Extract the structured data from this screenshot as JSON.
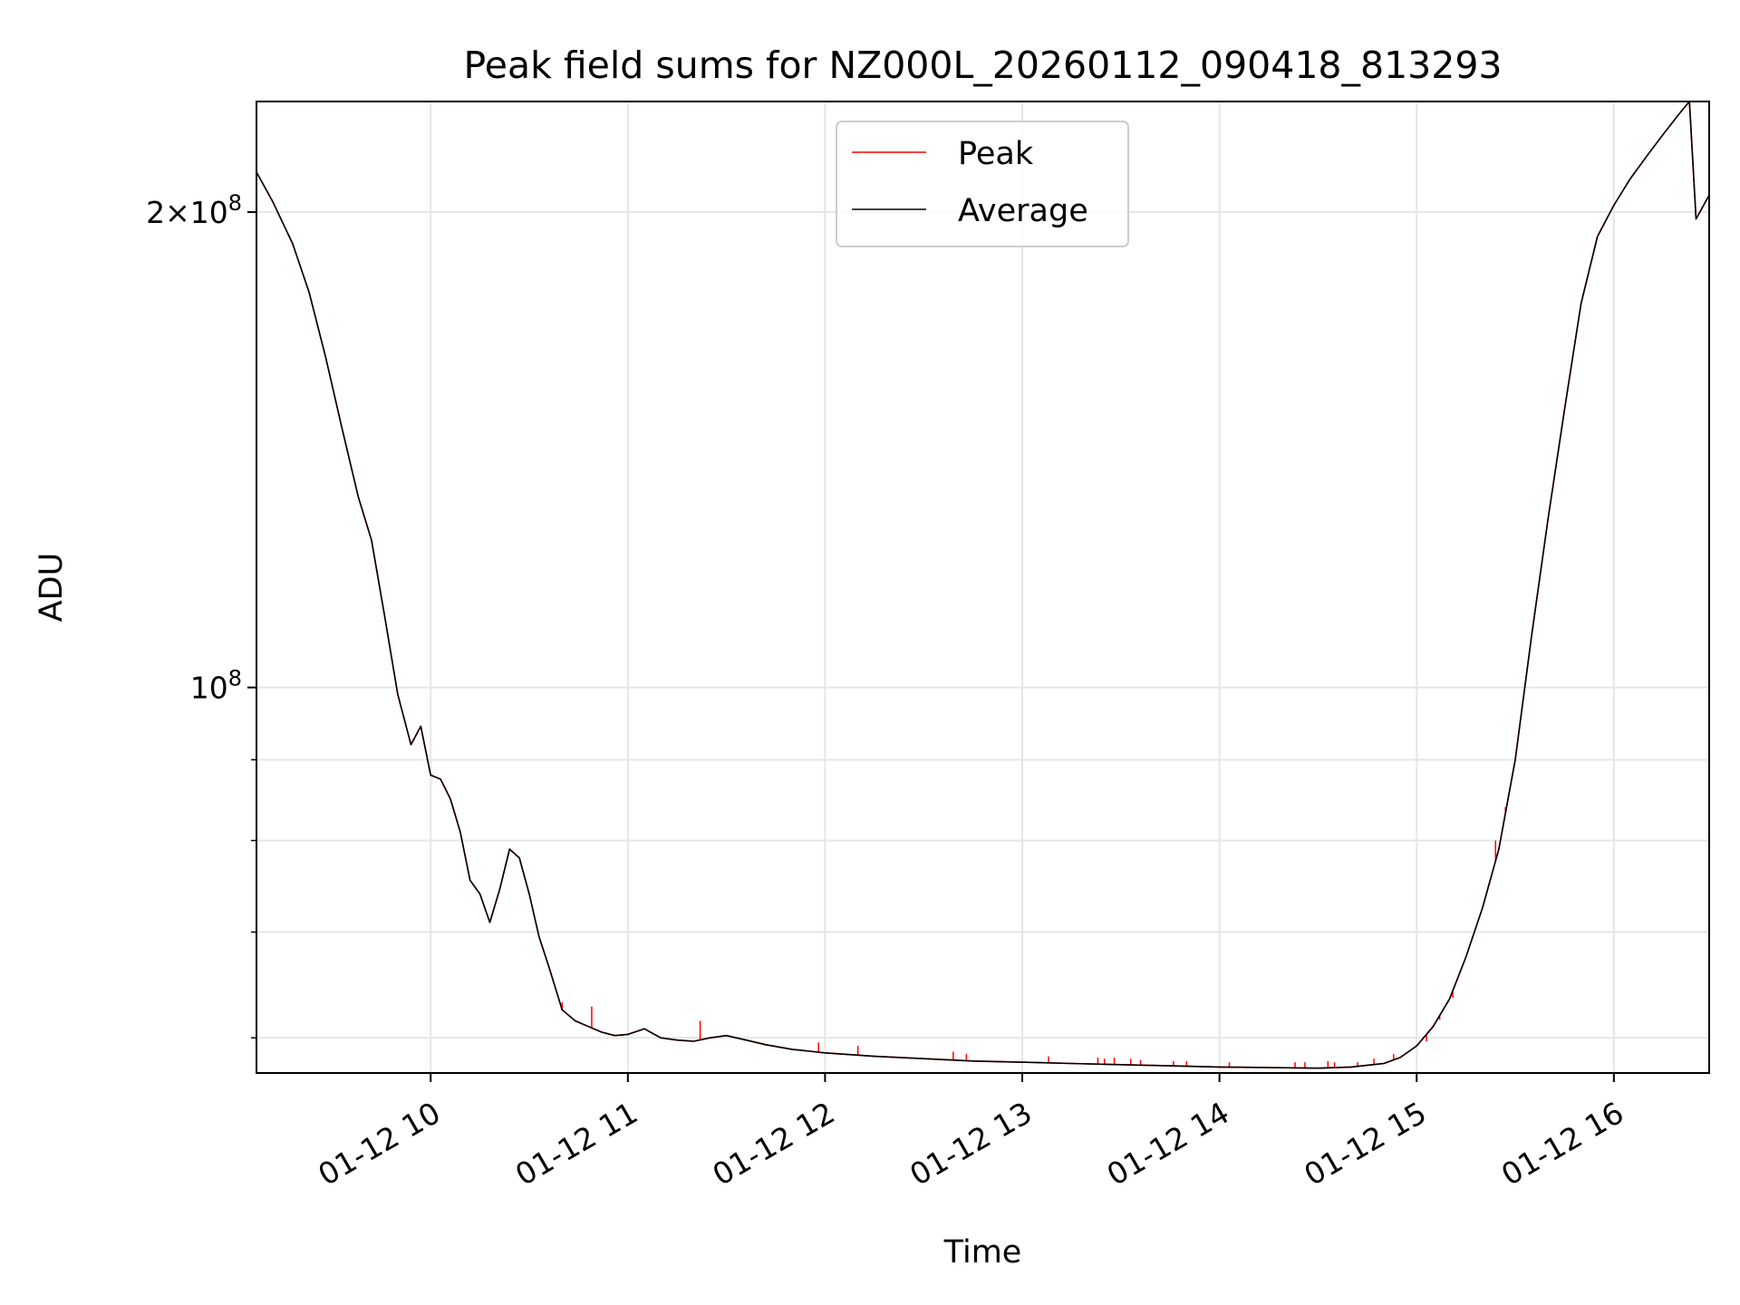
{
  "chart_data": {
    "type": "line",
    "title": "Peak field sums for NZ000L_20260112_090418_813293",
    "xlabel": "Time",
    "ylabel": "ADU",
    "x_scale": "time",
    "y_scale": "log",
    "xlim": [
      "2026-01-12 09:07",
      "2026-01-12 16:29"
    ],
    "ylim": [
      57000000,
      235000000
    ],
    "grid": true,
    "legend_position": "top-center",
    "x_ticks": [
      {
        "label": "01-12 10",
        "t": "2026-01-12 10:00"
      },
      {
        "label": "01-12 11",
        "t": "2026-01-12 11:00"
      },
      {
        "label": "01-12 12",
        "t": "2026-01-12 12:00"
      },
      {
        "label": "01-12 13",
        "t": "2026-01-12 13:00"
      },
      {
        "label": "01-12 14",
        "t": "2026-01-12 14:00"
      },
      {
        "label": "01-12 15",
        "t": "2026-01-12 15:00"
      },
      {
        "label": "01-12 16",
        "t": "2026-01-12 16:00"
      }
    ],
    "y_major_ticks": [
      {
        "value": 100000000,
        "base": "10",
        "exp": "8"
      },
      {
        "value": 200000000,
        "base": "2×10",
        "exp": "8"
      }
    ],
    "y_minor_ticks": [
      60000000,
      70000000,
      80000000,
      90000000
    ],
    "series": [
      {
        "name": "Peak",
        "color": "#ff0000",
        "points": [
          [
            "09:07",
            212000000
          ],
          [
            "09:12",
            203000000
          ],
          [
            "09:18",
            191000000
          ],
          [
            "09:23",
            178000000
          ],
          [
            "09:28",
            162000000
          ],
          [
            "09:33",
            146000000
          ],
          [
            "09:38",
            132000000
          ],
          [
            "09:42",
            124000000
          ],
          [
            "09:46",
            111000000
          ],
          [
            "09:50",
            99000000
          ],
          [
            "09:54",
            92000000
          ],
          [
            "09:57",
            94500000
          ],
          [
            "10:00",
            88000000
          ],
          [
            "10:03",
            87500000
          ],
          [
            "10:06",
            85000000
          ],
          [
            "10:09",
            81000000
          ],
          [
            "10:12",
            75500000
          ],
          [
            "10:15",
            74000000
          ],
          [
            "10:18",
            71000000
          ],
          [
            "10:21",
            74500000
          ],
          [
            "10:24",
            79000000
          ],
          [
            "10:27",
            78000000
          ],
          [
            "10:30",
            74000000
          ],
          [
            "10:33",
            69500000
          ],
          [
            "10:36",
            66500000
          ],
          [
            "10:40",
            62500000
          ],
          [
            "10:44",
            61500000
          ],
          [
            "10:48",
            61000000
          ],
          [
            "10:52",
            60500000
          ],
          [
            "10:56",
            60200000
          ],
          [
            "11:00",
            60300000
          ],
          [
            "11:05",
            60800000
          ],
          [
            "11:10",
            60000000
          ],
          [
            "11:15",
            59800000
          ],
          [
            "11:20",
            59700000
          ],
          [
            "11:25",
            60000000
          ],
          [
            "11:30",
            60200000
          ],
          [
            "11:36",
            59800000
          ],
          [
            "11:42",
            59400000
          ],
          [
            "11:50",
            59000000
          ],
          [
            "12:00",
            58700000
          ],
          [
            "12:15",
            58400000
          ],
          [
            "12:30",
            58200000
          ],
          [
            "12:45",
            58000000
          ],
          [
            "13:00",
            57900000
          ],
          [
            "13:15",
            57800000
          ],
          [
            "13:30",
            57700000
          ],
          [
            "13:45",
            57600000
          ],
          [
            "14:00",
            57500000
          ],
          [
            "14:15",
            57450000
          ],
          [
            "14:30",
            57400000
          ],
          [
            "14:40",
            57500000
          ],
          [
            "14:50",
            57800000
          ],
          [
            "14:55",
            58300000
          ],
          [
            "15:00",
            59300000
          ],
          [
            "15:05",
            61000000
          ],
          [
            "15:10",
            63500000
          ],
          [
            "15:15",
            67500000
          ],
          [
            "15:20",
            72500000
          ],
          [
            "15:25",
            79000000
          ],
          [
            "15:30",
            90000000
          ],
          [
            "15:35",
            108000000
          ],
          [
            "15:40",
            128000000
          ],
          [
            "15:45",
            150000000
          ],
          [
            "15:50",
            175000000
          ],
          [
            "15:55",
            193000000
          ],
          [
            "16:00",
            202000000
          ],
          [
            "16:05",
            210000000
          ],
          [
            "16:10",
            217000000
          ],
          [
            "16:15",
            224000000
          ],
          [
            "16:20",
            231000000
          ],
          [
            "16:23",
            235000000
          ],
          [
            "16:25",
            198000000
          ],
          [
            "16:29",
            205000000
          ]
        ]
      },
      {
        "name": "Average",
        "color": "#000000",
        "points": [
          [
            "09:07",
            212000000
          ],
          [
            "09:12",
            203000000
          ],
          [
            "09:18",
            191000000
          ],
          [
            "09:23",
            178000000
          ],
          [
            "09:28",
            162000000
          ],
          [
            "09:33",
            146000000
          ],
          [
            "09:38",
            132000000
          ],
          [
            "09:42",
            124000000
          ],
          [
            "09:46",
            111000000
          ],
          [
            "09:50",
            99000000
          ],
          [
            "09:54",
            92000000
          ],
          [
            "09:57",
            94500000
          ],
          [
            "10:00",
            88000000
          ],
          [
            "10:03",
            87500000
          ],
          [
            "10:06",
            85000000
          ],
          [
            "10:09",
            81000000
          ],
          [
            "10:12",
            75500000
          ],
          [
            "10:15",
            74000000
          ],
          [
            "10:18",
            71000000
          ],
          [
            "10:21",
            74500000
          ],
          [
            "10:24",
            79000000
          ],
          [
            "10:27",
            78000000
          ],
          [
            "10:30",
            74000000
          ],
          [
            "10:33",
            69500000
          ],
          [
            "10:36",
            66500000
          ],
          [
            "10:40",
            62500000
          ],
          [
            "10:44",
            61500000
          ],
          [
            "10:48",
            61000000
          ],
          [
            "10:52",
            60500000
          ],
          [
            "10:56",
            60200000
          ],
          [
            "11:00",
            60300000
          ],
          [
            "11:05",
            60800000
          ],
          [
            "11:10",
            60000000
          ],
          [
            "11:15",
            59800000
          ],
          [
            "11:20",
            59700000
          ],
          [
            "11:25",
            60000000
          ],
          [
            "11:30",
            60200000
          ],
          [
            "11:36",
            59800000
          ],
          [
            "11:42",
            59400000
          ],
          [
            "11:50",
            59000000
          ],
          [
            "12:00",
            58700000
          ],
          [
            "12:15",
            58400000
          ],
          [
            "12:30",
            58200000
          ],
          [
            "12:45",
            58000000
          ],
          [
            "13:00",
            57900000
          ],
          [
            "13:15",
            57800000
          ],
          [
            "13:30",
            57700000
          ],
          [
            "13:45",
            57600000
          ],
          [
            "14:00",
            57500000
          ],
          [
            "14:15",
            57450000
          ],
          [
            "14:30",
            57400000
          ],
          [
            "14:40",
            57500000
          ],
          [
            "14:50",
            57800000
          ],
          [
            "14:55",
            58300000
          ],
          [
            "15:00",
            59300000
          ],
          [
            "15:05",
            61000000
          ],
          [
            "15:10",
            63500000
          ],
          [
            "15:15",
            67500000
          ],
          [
            "15:20",
            72500000
          ],
          [
            "15:25",
            79000000
          ],
          [
            "15:30",
            90000000
          ],
          [
            "15:35",
            108000000
          ],
          [
            "15:40",
            128000000
          ],
          [
            "15:45",
            150000000
          ],
          [
            "15:50",
            175000000
          ],
          [
            "15:55",
            193000000
          ],
          [
            "16:00",
            202000000
          ],
          [
            "16:05",
            210000000
          ],
          [
            "16:10",
            217000000
          ],
          [
            "16:15",
            224000000
          ],
          [
            "16:20",
            231000000
          ],
          [
            "16:23",
            235000000
          ],
          [
            "16:25",
            198000000
          ],
          [
            "16:29",
            205000000
          ]
        ]
      }
    ],
    "peak_spikes": [
      [
        "10:40",
        63200000
      ],
      [
        "10:49",
        62800000
      ],
      [
        "11:22",
        61500000
      ],
      [
        "11:58",
        59600000
      ],
      [
        "12:10",
        59300000
      ],
      [
        "12:39",
        58800000
      ],
      [
        "12:43",
        58600000
      ],
      [
        "13:08",
        58400000
      ],
      [
        "13:23",
        58300000
      ],
      [
        "13:25",
        58200000
      ],
      [
        "13:28",
        58300000
      ],
      [
        "13:33",
        58200000
      ],
      [
        "13:36",
        58100000
      ],
      [
        "13:46",
        58000000
      ],
      [
        "13:50",
        58000000
      ],
      [
        "14:03",
        57900000
      ],
      [
        "14:23",
        57900000
      ],
      [
        "14:26",
        57900000
      ],
      [
        "14:33",
        58000000
      ],
      [
        "14:35",
        57900000
      ],
      [
        "14:42",
        57900000
      ],
      [
        "14:47",
        58200000
      ],
      [
        "14:53",
        58600000
      ],
      [
        "15:03",
        59700000
      ],
      [
        "15:07",
        61600000
      ],
      [
        "15:11",
        63600000
      ],
      [
        "15:24",
        80000000
      ],
      [
        "15:27",
        84000000
      ]
    ]
  }
}
